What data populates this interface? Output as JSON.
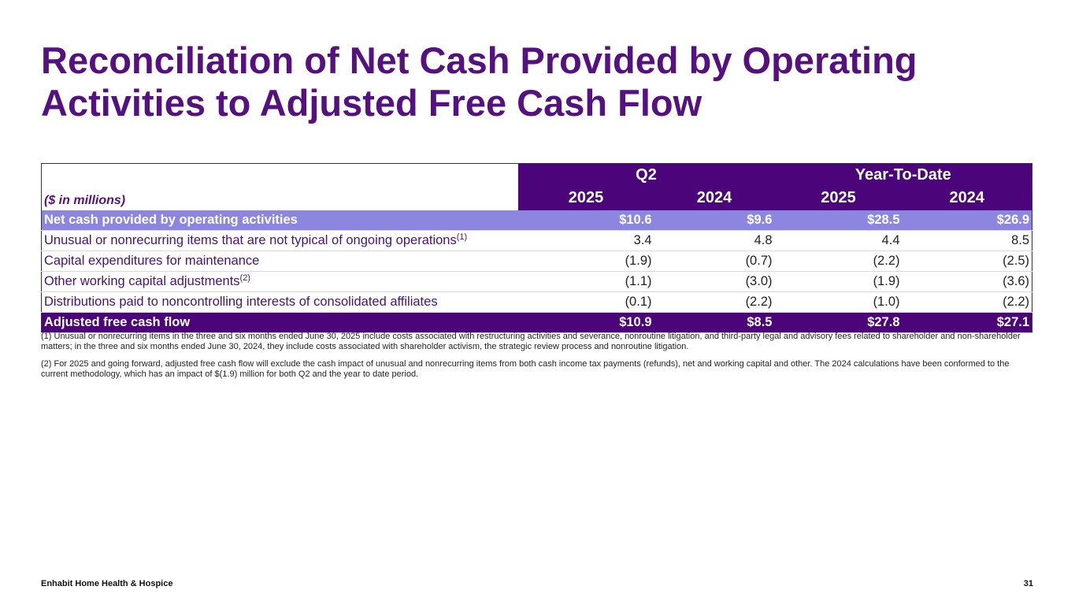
{
  "header": {
    "title": "Reconciliation of Net Cash Provided by Operating Activities to Adjusted Free Cash Flow"
  },
  "table": {
    "groups": [
      "Q2",
      "Year-To-Date"
    ],
    "units": "($ in millions)",
    "years": [
      "2025",
      "2024",
      "2025",
      "2024"
    ],
    "rows": [
      {
        "label": "Net cash provided by operating activities",
        "values": [
          "$10.6",
          "$9.6",
          "$28.5",
          "$26.9"
        ]
      },
      {
        "label": "Unusual or nonrecurring items that are not typical of ongoing operations",
        "note": "(1)",
        "values": [
          "3.4",
          "4.8",
          "4.4",
          "8.5"
        ]
      },
      {
        "label": "Capital expenditures for maintenance",
        "values": [
          "(1.9)",
          "(0.7)",
          "(2.2)",
          "(2.5)"
        ]
      },
      {
        "label": "Other working capital adjustments",
        "note": "(2)",
        "values": [
          "(1.1)",
          "(3.0)",
          "(1.9)",
          "(3.6)"
        ]
      },
      {
        "label": "Distributions paid to noncontrolling interests of consolidated affiliates",
        "values": [
          "(0.1)",
          "(2.2)",
          "(1.0)",
          "(2.2)"
        ]
      },
      {
        "label": "Adjusted free cash flow",
        "values": [
          "$10.9",
          "$8.5",
          "$27.8",
          "$27.1"
        ]
      }
    ]
  },
  "footnotes": [
    "(1) Unusual or nonrecurring items in the three and six months ended June 30, 2025 include costs associated with restructuring activities and severance, nonroutine litigation, and third-party legal and advisory fees related to shareholder and non-shareholder matters; in the three and six months ended June 30, 2024, they include costs associated with shareholder activism, the strategic review process and nonroutine litigation.",
    "(2) For 2025 and going forward, adjusted free cash flow will exclude the cash impact of unusual and nonrecurring items from both cash income tax payments (refunds), net and working capital and other. The 2024 calculations have been conformed to the current methodology, which has an impact of $(1.9) million for both Q2 and the year to date period."
  ],
  "footer": {
    "company": "Enhabit Home Health & Hospice",
    "page": "31"
  }
}
